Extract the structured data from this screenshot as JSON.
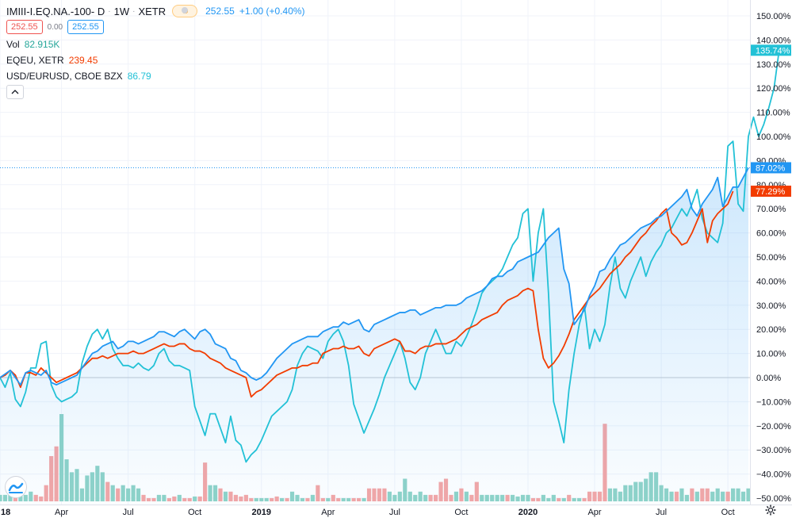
{
  "header": {
    "symbol": "IMIII-I.EQ.NA.-100- D",
    "interval": "1W",
    "exchange": "XETR",
    "badge": "D",
    "price": "252.55",
    "change": "+1.00 (+0.40%)",
    "bid": "252.55",
    "spread": "0.00",
    "ask": "252.55"
  },
  "legend": {
    "vol_label": "Vol",
    "vol_value": "82.915K",
    "eqeu_label": "EQEU, XETR",
    "eqeu_value": "239.45",
    "usdeur_label": "USD/EURUSD, CBOE BZX",
    "usdeur_value": "86.79"
  },
  "colors": {
    "main_line": "#2196f3",
    "eqeu_line": "#f23c00",
    "usdeur_line": "#22c1d6",
    "vol_up": "#8fd3c8",
    "vol_down": "#f4a6a6"
  },
  "icons": {
    "collapse": "chevron-up-icon",
    "logo": "tradingview-logo-icon",
    "settings": "gear-icon"
  },
  "chart_data": {
    "type": "line",
    "y_unit": "%",
    "ylim": [
      -50,
      150
    ],
    "y_ticks": [
      "150.00%",
      "140.00%",
      "130.00%",
      "120.00%",
      "110.00%",
      "100.00%",
      "90.00%",
      "80.00%",
      "70.00%",
      "60.00%",
      "50.00%",
      "40.00%",
      "30.00%",
      "20.00%",
      "10.00%",
      "0.00%",
      "−10.00%",
      "−20.00%",
      "−30.00%",
      "−40.00%",
      "−50.00%"
    ],
    "x_ticks": [
      {
        "label": "18",
        "bold": true,
        "i": 0
      },
      {
        "label": "Apr",
        "bold": false,
        "i": 12
      },
      {
        "label": "Jul",
        "bold": false,
        "i": 25
      },
      {
        "label": "Oct",
        "bold": false,
        "i": 38
      },
      {
        "label": "2019",
        "bold": true,
        "i": 51
      },
      {
        "label": "Apr",
        "bold": false,
        "i": 64
      },
      {
        "label": "Jul",
        "bold": false,
        "i": 77
      },
      {
        "label": "Oct",
        "bold": false,
        "i": 90
      },
      {
        "label": "2020",
        "bold": true,
        "i": 103
      },
      {
        "label": "Apr",
        "bold": false,
        "i": 116
      },
      {
        "label": "Jul",
        "bold": false,
        "i": 129
      },
      {
        "label": "Oct",
        "bold": false,
        "i": 142
      }
    ],
    "last_value_labels": [
      {
        "text": "135.74%",
        "value": 135.74,
        "color": "#22c1d6"
      },
      {
        "text": "87.02%",
        "value": 87.02,
        "color": "#2196f3"
      },
      {
        "text": "77.29%",
        "value": 77.29,
        "color": "#f23c00"
      }
    ],
    "series": [
      {
        "values": [
          0,
          1.5,
          3,
          0,
          -3,
          2,
          3,
          2,
          1,
          3,
          -2,
          -3,
          -2,
          -1,
          0,
          1,
          4,
          7,
          10,
          11,
          13,
          14,
          15,
          12,
          13,
          15,
          15,
          14,
          15,
          16,
          17,
          19,
          19,
          18,
          17,
          19,
          20,
          18,
          16,
          19,
          20,
          18,
          14,
          13,
          12,
          8,
          7,
          3,
          2,
          0,
          -1,
          0,
          2,
          5,
          8,
          10,
          12,
          14,
          15,
          16,
          17,
          17,
          17,
          19,
          20,
          21,
          21,
          23,
          22,
          23,
          24,
          20,
          19,
          22,
          23,
          24,
          25,
          26,
          27,
          27,
          28,
          28,
          26,
          27,
          28,
          29,
          29,
          30,
          30,
          30,
          31,
          33,
          34,
          35,
          36,
          38,
          41,
          42,
          42,
          44,
          45,
          48,
          49,
          50,
          51,
          52,
          55,
          58,
          60,
          62,
          45,
          39,
          22,
          25,
          28,
          34,
          38,
          44,
          45,
          49,
          52,
          55,
          56,
          58,
          60,
          62,
          63,
          64,
          66,
          67,
          69,
          71,
          73,
          75,
          78,
          70,
          67,
          72,
          75,
          78,
          83,
          71,
          75,
          79,
          79,
          83,
          87
        ],
        "color": "#2196f3"
      },
      {
        "values": [
          0,
          1,
          3,
          1,
          -4,
          2,
          2,
          1,
          4,
          2,
          0,
          -2,
          -1,
          0,
          1,
          2,
          4,
          6,
          8,
          8,
          9,
          8,
          9,
          10,
          10,
          10,
          11,
          10,
          10,
          11,
          12,
          13,
          14,
          13,
          13,
          14,
          14,
          12,
          11,
          11,
          10,
          8,
          7,
          6,
          4,
          3,
          2,
          1,
          0,
          -8,
          -6,
          -5,
          -3,
          -1,
          1,
          2,
          3,
          4,
          4,
          5,
          5,
          6,
          6,
          10,
          11,
          12,
          12,
          13,
          12,
          12,
          13,
          10,
          9,
          12,
          13,
          14,
          15,
          16,
          15,
          11,
          11,
          10,
          12,
          13,
          13,
          14,
          14,
          14,
          15,
          16,
          18,
          20,
          21,
          22,
          24,
          25,
          26,
          27,
          30,
          32,
          33,
          34,
          36,
          37,
          36,
          20,
          8,
          4,
          6,
          9,
          13,
          18,
          24,
          27,
          30,
          33,
          35,
          37,
          40,
          43,
          45,
          47,
          50,
          52,
          55,
          58,
          60,
          63,
          65,
          68,
          70,
          60,
          58,
          55,
          56,
          60,
          65,
          70,
          56,
          65,
          68,
          70,
          72,
          77.29
        ],
        "color": "#f23c00"
      },
      {
        "values": [
          0,
          -4,
          2,
          -9,
          -12,
          -6,
          4,
          4,
          14,
          15,
          -3,
          -8,
          -10,
          -9,
          -8,
          -6,
          6,
          13,
          18,
          20,
          16,
          20,
          12,
          8,
          5,
          5,
          4,
          6,
          4,
          3,
          5,
          10,
          12,
          7,
          5,
          5,
          4,
          3,
          -12,
          -18,
          -24,
          -15,
          -15,
          -21,
          -27,
          -16,
          -26,
          -28,
          -35,
          -32,
          -30,
          -26,
          -21,
          -16,
          -14,
          -12,
          -10,
          -5,
          5,
          10,
          13,
          12,
          11,
          8,
          15,
          18,
          20,
          15,
          5,
          -11,
          -17,
          -23,
          -18,
          -13,
          -7,
          0,
          5,
          10,
          15,
          8,
          -2,
          -5,
          0,
          10,
          15,
          20,
          15,
          10,
          10,
          15,
          13,
          17,
          22,
          28,
          35,
          38,
          40,
          42,
          45,
          50,
          55,
          58,
          68,
          70,
          40,
          60,
          70,
          35,
          -10,
          -18,
          -27,
          -5,
          10,
          22,
          30,
          12,
          20,
          15,
          22,
          38,
          50,
          37,
          33,
          40,
          45,
          50,
          42,
          48,
          52,
          55,
          60,
          62,
          66,
          70,
          67,
          72,
          78,
          66,
          60,
          58,
          56,
          64,
          96,
          98,
          72,
          69,
          100,
          108,
          100,
          105,
          112,
          120,
          135.74
        ],
        "color": "#22c1d6"
      }
    ],
    "volume": [
      {
        "v": 2,
        "c": "up"
      },
      {
        "v": 2,
        "c": "up"
      },
      {
        "v": 2,
        "c": "up"
      },
      {
        "v": 3,
        "c": "down"
      },
      {
        "v": 2,
        "c": "up"
      },
      {
        "v": 2,
        "c": "up"
      },
      {
        "v": 3,
        "c": "up"
      },
      {
        "v": 2,
        "c": "down"
      },
      {
        "v": 1.5,
        "c": "down"
      },
      {
        "v": 5,
        "c": "down"
      },
      {
        "v": 14,
        "c": "down"
      },
      {
        "v": 17,
        "c": "down"
      },
      {
        "v": 27,
        "c": "up"
      },
      {
        "v": 13,
        "c": "up"
      },
      {
        "v": 9,
        "c": "up"
      },
      {
        "v": 10,
        "c": "up"
      },
      {
        "v": 4,
        "c": "up"
      },
      {
        "v": 8,
        "c": "up"
      },
      {
        "v": 9,
        "c": "up"
      },
      {
        "v": 11,
        "c": "up"
      },
      {
        "v": 9,
        "c": "up"
      },
      {
        "v": 6,
        "c": "down"
      },
      {
        "v": 5,
        "c": "up"
      },
      {
        "v": 4,
        "c": "down"
      },
      {
        "v": 5,
        "c": "up"
      },
      {
        "v": 4,
        "c": "up"
      },
      {
        "v": 5,
        "c": "up"
      },
      {
        "v": 4,
        "c": "up"
      },
      {
        "v": 2,
        "c": "down"
      },
      {
        "v": 1,
        "c": "down"
      },
      {
        "v": 1,
        "c": "down"
      },
      {
        "v": 2,
        "c": "up"
      },
      {
        "v": 2,
        "c": "up"
      },
      {
        "v": 1,
        "c": "down"
      },
      {
        "v": 1.5,
        "c": "down"
      },
      {
        "v": 2,
        "c": "up"
      },
      {
        "v": 1,
        "c": "down"
      },
      {
        "v": 1,
        "c": "down"
      },
      {
        "v": 1.5,
        "c": "up"
      },
      {
        "v": 1.5,
        "c": "down"
      },
      {
        "v": 12,
        "c": "down"
      },
      {
        "v": 5,
        "c": "up"
      },
      {
        "v": 5,
        "c": "up"
      },
      {
        "v": 4,
        "c": "down"
      },
      {
        "v": 3,
        "c": "up"
      },
      {
        "v": 3,
        "c": "down"
      },
      {
        "v": 2,
        "c": "down"
      },
      {
        "v": 1.5,
        "c": "down"
      },
      {
        "v": 2,
        "c": "down"
      },
      {
        "v": 1,
        "c": "down"
      },
      {
        "v": 1,
        "c": "up"
      },
      {
        "v": 1,
        "c": "up"
      },
      {
        "v": 1,
        "c": "up"
      },
      {
        "v": 1,
        "c": "down"
      },
      {
        "v": 1.5,
        "c": "down"
      },
      {
        "v": 1,
        "c": "up"
      },
      {
        "v": 1,
        "c": "down"
      },
      {
        "v": 3,
        "c": "up"
      },
      {
        "v": 2,
        "c": "up"
      },
      {
        "v": 1,
        "c": "up"
      },
      {
        "v": 1,
        "c": "down"
      },
      {
        "v": 2,
        "c": "up"
      },
      {
        "v": 5,
        "c": "down"
      },
      {
        "v": 1,
        "c": "down"
      },
      {
        "v": 1,
        "c": "up"
      },
      {
        "v": 2,
        "c": "down"
      },
      {
        "v": 1,
        "c": "down"
      },
      {
        "v": 1,
        "c": "up"
      },
      {
        "v": 1,
        "c": "up"
      },
      {
        "v": 1,
        "c": "down"
      },
      {
        "v": 1,
        "c": "down"
      },
      {
        "v": 1,
        "c": "up"
      },
      {
        "v": 4,
        "c": "down"
      },
      {
        "v": 4,
        "c": "down"
      },
      {
        "v": 4,
        "c": "down"
      },
      {
        "v": 4,
        "c": "down"
      },
      {
        "v": 3,
        "c": "up"
      },
      {
        "v": 2,
        "c": "up"
      },
      {
        "v": 3,
        "c": "up"
      },
      {
        "v": 7,
        "c": "up"
      },
      {
        "v": 3,
        "c": "up"
      },
      {
        "v": 2,
        "c": "up"
      },
      {
        "v": 3,
        "c": "up"
      },
      {
        "v": 2,
        "c": "up"
      },
      {
        "v": 2,
        "c": "down"
      },
      {
        "v": 2,
        "c": "down"
      },
      {
        "v": 6,
        "c": "down"
      },
      {
        "v": 7,
        "c": "down"
      },
      {
        "v": 2,
        "c": "down"
      },
      {
        "v": 3,
        "c": "up"
      },
      {
        "v": 4,
        "c": "down"
      },
      {
        "v": 3,
        "c": "up"
      },
      {
        "v": 2,
        "c": "down"
      },
      {
        "v": 6,
        "c": "down"
      },
      {
        "v": 2,
        "c": "up"
      },
      {
        "v": 2,
        "c": "up"
      },
      {
        "v": 2,
        "c": "up"
      },
      {
        "v": 2,
        "c": "up"
      },
      {
        "v": 2,
        "c": "up"
      },
      {
        "v": 2,
        "c": "down"
      },
      {
        "v": 2,
        "c": "up"
      },
      {
        "v": 1.5,
        "c": "up"
      },
      {
        "v": 2,
        "c": "up"
      },
      {
        "v": 2,
        "c": "up"
      },
      {
        "v": 1,
        "c": "down"
      },
      {
        "v": 1,
        "c": "down"
      },
      {
        "v": 2,
        "c": "up"
      },
      {
        "v": 1,
        "c": "up"
      },
      {
        "v": 2,
        "c": "up"
      },
      {
        "v": 1,
        "c": "down"
      },
      {
        "v": 1,
        "c": "up"
      },
      {
        "v": 2,
        "c": "down"
      },
      {
        "v": 1,
        "c": "up"
      },
      {
        "v": 1,
        "c": "up"
      },
      {
        "v": 1,
        "c": "down"
      },
      {
        "v": 3,
        "c": "down"
      },
      {
        "v": 3,
        "c": "down"
      },
      {
        "v": 3,
        "c": "down"
      },
      {
        "v": 24,
        "c": "down"
      },
      {
        "v": 4,
        "c": "up"
      },
      {
        "v": 4,
        "c": "up"
      },
      {
        "v": 3,
        "c": "up"
      },
      {
        "v": 5,
        "c": "up"
      },
      {
        "v": 5,
        "c": "up"
      },
      {
        "v": 6,
        "c": "up"
      },
      {
        "v": 6,
        "c": "up"
      },
      {
        "v": 7,
        "c": "up"
      },
      {
        "v": 9,
        "c": "up"
      },
      {
        "v": 9,
        "c": "up"
      },
      {
        "v": 5,
        "c": "up"
      },
      {
        "v": 4,
        "c": "up"
      },
      {
        "v": 3,
        "c": "up"
      },
      {
        "v": 3,
        "c": "down"
      },
      {
        "v": 4,
        "c": "up"
      },
      {
        "v": 2,
        "c": "up"
      },
      {
        "v": 4,
        "c": "down"
      },
      {
        "v": 3,
        "c": "up"
      },
      {
        "v": 4,
        "c": "down"
      },
      {
        "v": 4,
        "c": "down"
      },
      {
        "v": 3,
        "c": "up"
      },
      {
        "v": 4,
        "c": "up"
      },
      {
        "v": 3,
        "c": "up"
      },
      {
        "v": 3,
        "c": "down"
      },
      {
        "v": 4,
        "c": "up"
      },
      {
        "v": 4,
        "c": "up"
      },
      {
        "v": 3,
        "c": "up"
      },
      {
        "v": 4,
        "c": "up"
      },
      {
        "v": 4,
        "c": "up"
      },
      {
        "v": 4,
        "c": "up"
      },
      {
        "v": 3,
        "c": "up"
      },
      {
        "v": 3,
        "c": "up"
      },
      {
        "v": 3,
        "c": "up"
      },
      {
        "v": 5,
        "c": "down"
      },
      {
        "v": 5,
        "c": "down"
      },
      {
        "v": 5,
        "c": "down"
      },
      {
        "v": 5,
        "c": "down"
      },
      {
        "v": 4,
        "c": "down"
      },
      {
        "v": 3,
        "c": "up"
      },
      {
        "v": 5,
        "c": "up"
      }
    ]
  }
}
